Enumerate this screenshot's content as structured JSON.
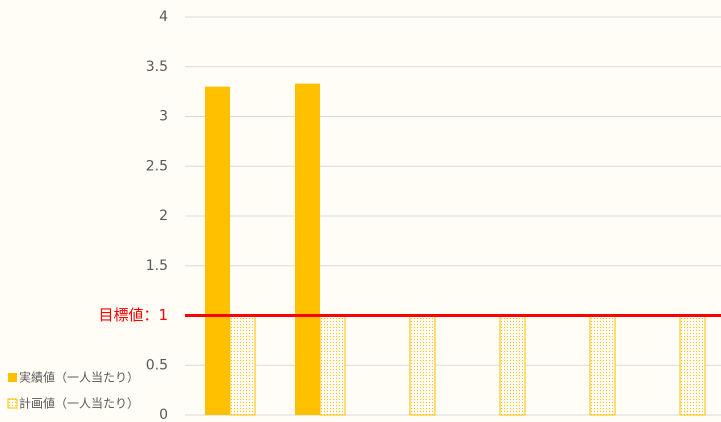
{
  "chart_data": {
    "type": "bar",
    "categories": [
      null,
      null,
      null,
      null,
      null,
      null
    ],
    "series": [
      {
        "name": "実績値（一人当たり）",
        "color": "#ffc000",
        "style": "solid",
        "values": [
          3.3,
          3.33,
          null,
          null,
          null,
          null
        ]
      },
      {
        "name": "計画値（一人当たり）",
        "color": "#ffc000",
        "style": "hatched",
        "values": [
          1,
          1,
          1,
          1,
          1,
          1
        ]
      }
    ],
    "ylim": [
      0,
      4
    ],
    "yticks": [
      0,
      0.5,
      {
        "value": 1,
        "label": "目標値：1"
      },
      1.5,
      2,
      2.5,
      3,
      3.5,
      4
    ],
    "grid": true,
    "target_line": {
      "value": 1,
      "color": "#ff0000"
    },
    "legend": "bottom-left"
  }
}
